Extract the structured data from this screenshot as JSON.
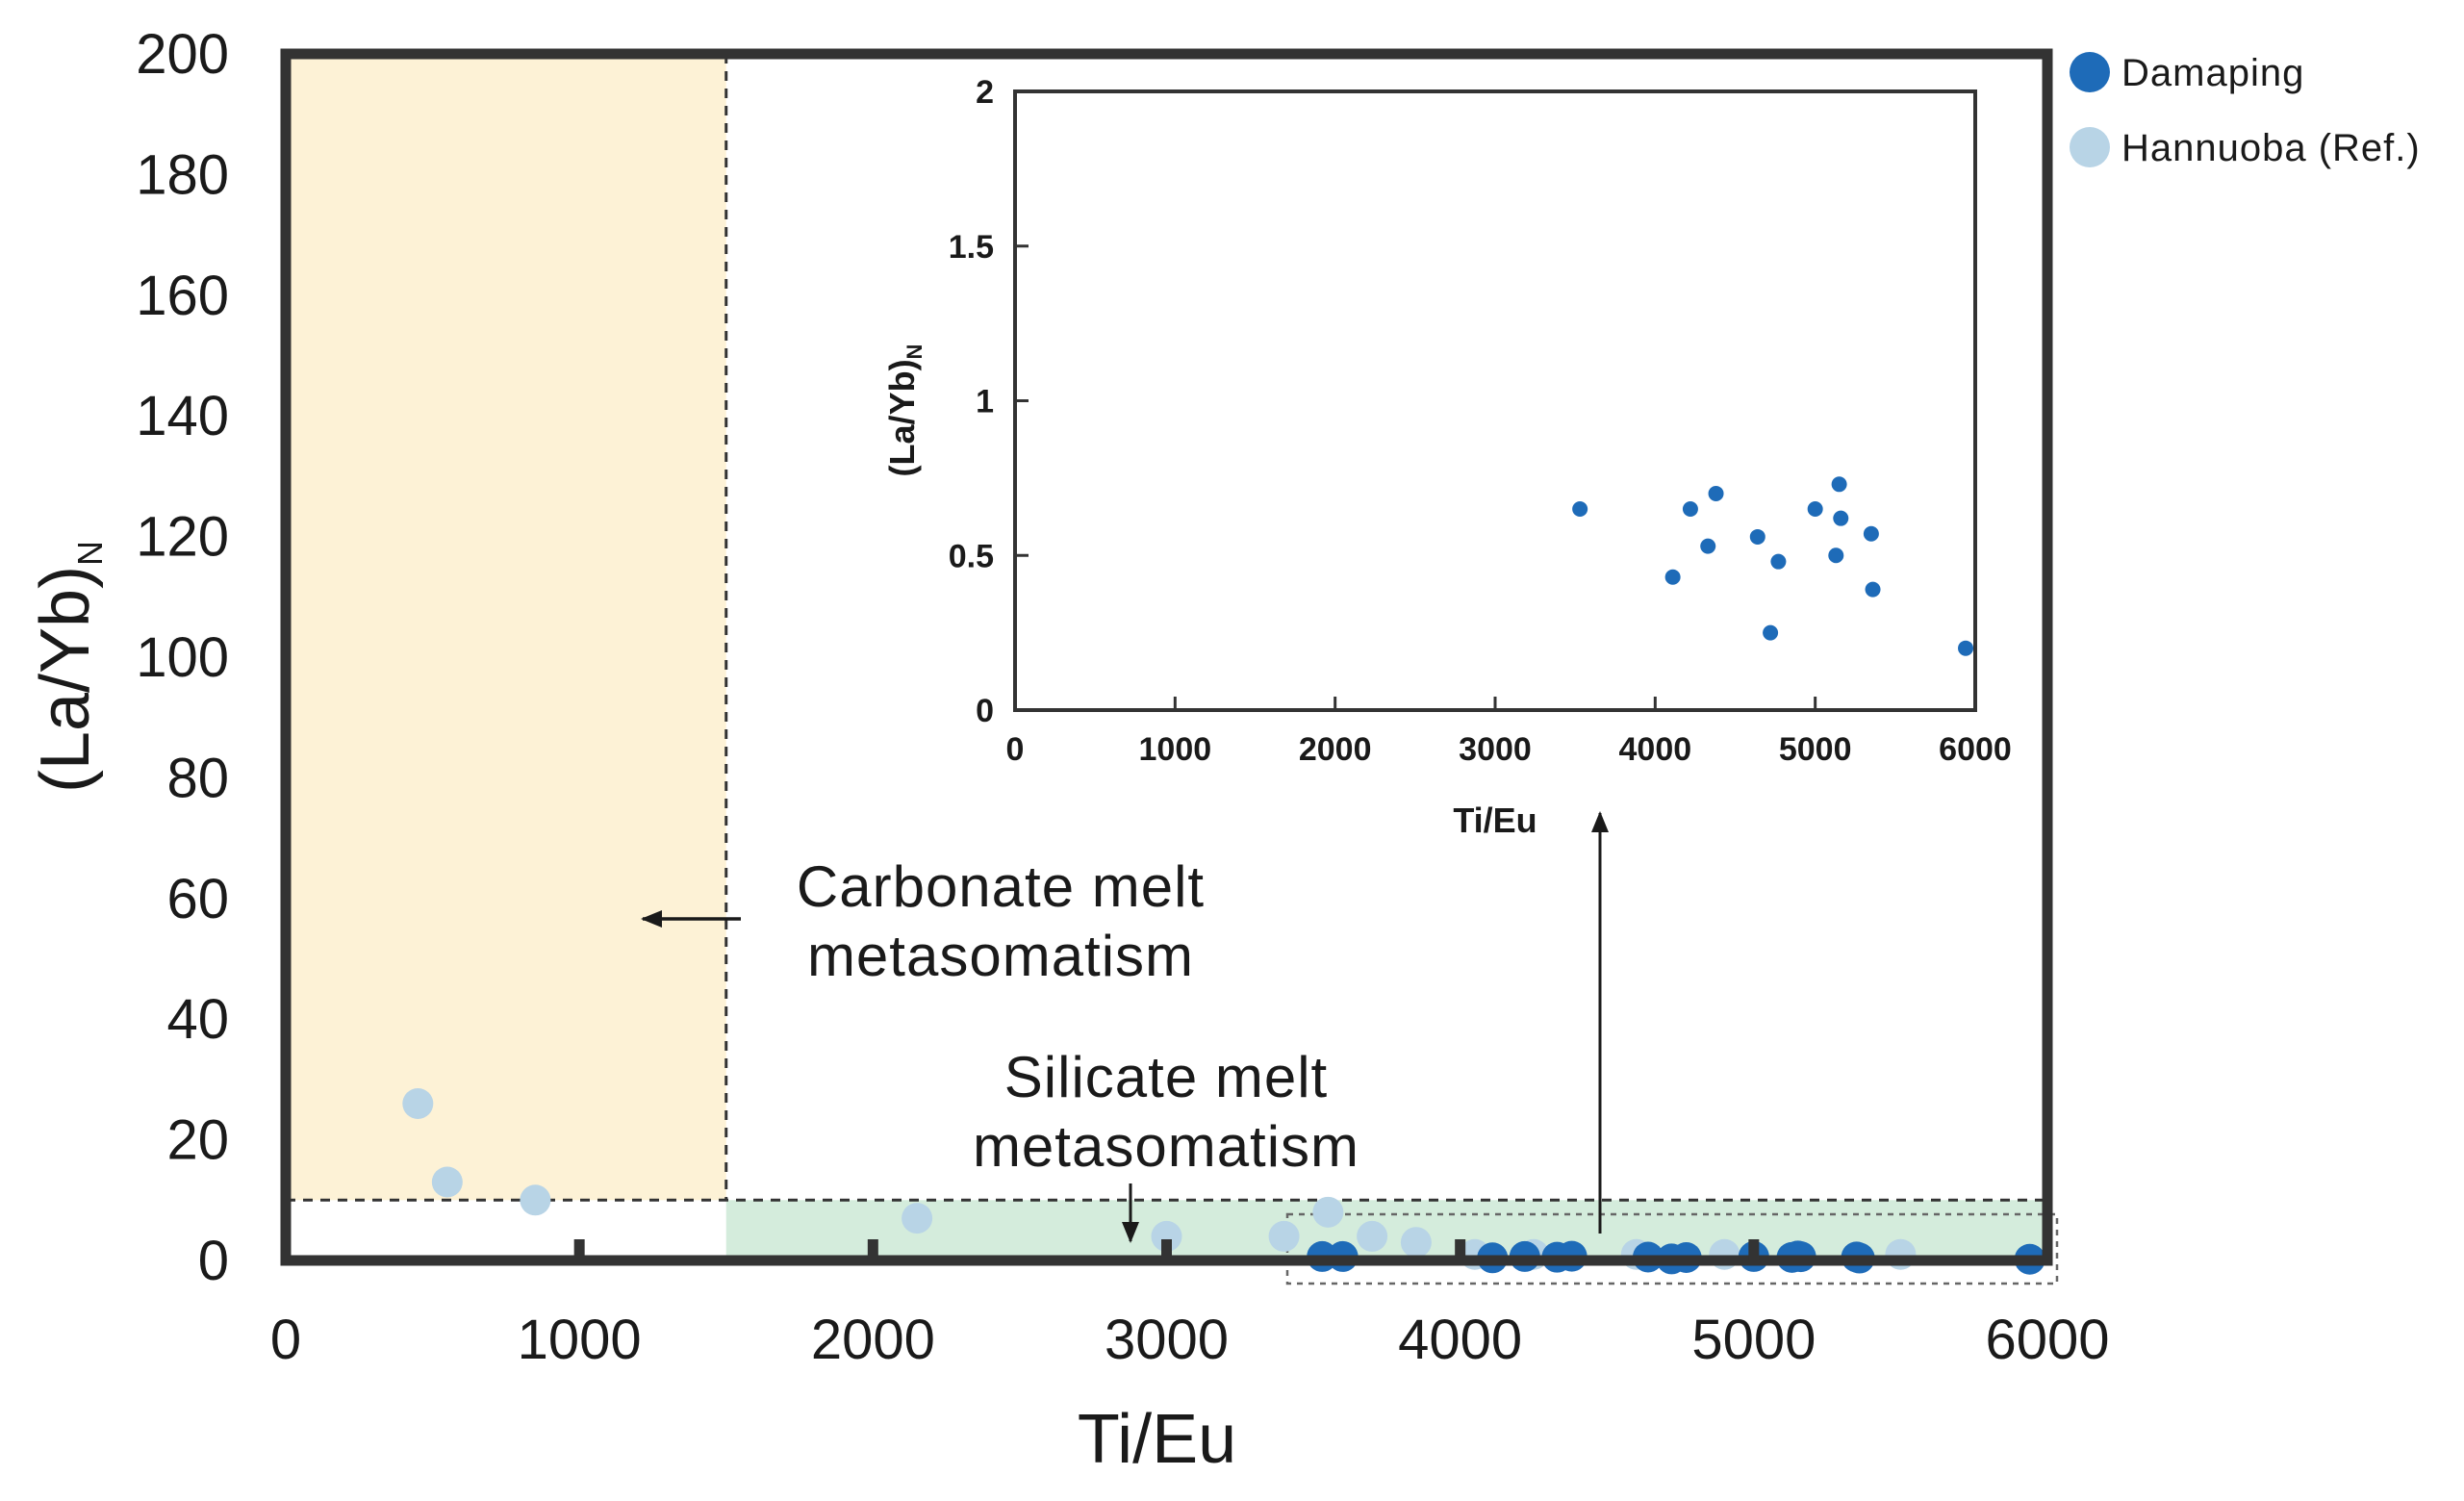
{
  "chart_data": [
    {
      "type": "scatter",
      "title": "",
      "xlabel": "Ti/Eu",
      "ylabel_main": "(La/Yb)",
      "ylabel_sub": "N",
      "xlim": [
        0,
        6000
      ],
      "ylim": [
        0,
        200
      ],
      "x_ticks": [
        0,
        1000,
        2000,
        3000,
        4000,
        5000,
        6000
      ],
      "y_ticks": [
        0,
        20,
        40,
        60,
        80,
        100,
        120,
        140,
        160,
        180,
        200
      ],
      "grid": false,
      "legend_position": "top-right",
      "regions": [
        {
          "x": [
            0,
            1500
          ],
          "y": [
            10,
            200
          ],
          "color": "#fdf2d6"
        },
        {
          "x": [
            1500,
            6000
          ],
          "y": [
            0,
            10
          ],
          "color": "#d4ecdc"
        }
      ],
      "annotations": [
        {
          "line1": "Carbonate melt",
          "line2": "metasomatism"
        },
        {
          "line1": "Silicate melt",
          "line2": "metasomatism"
        }
      ],
      "series": [
        {
          "name": "Damaping",
          "color": "#1e6bb8",
          "points": [
            [
              3530,
              0.65
            ],
            [
              3600,
              0.65
            ],
            [
              4110,
              0.43
            ],
            [
              4220,
              0.65
            ],
            [
              4330,
              0.53
            ],
            [
              4380,
              0.7
            ],
            [
              4640,
              0.56
            ],
            [
              4720,
              0.25
            ],
            [
              4770,
              0.48
            ],
            [
              5000,
              0.65
            ],
            [
              5130,
              0.5
            ],
            [
              5150,
              0.73
            ],
            [
              5160,
              0.62
            ],
            [
              5350,
              0.57
            ],
            [
              5360,
              0.39
            ],
            [
              5940,
              0.2
            ]
          ]
        },
        {
          "name": "Hannuoba (Ref.)",
          "color": "#b8d4e6",
          "points": [
            [
              450,
              26
            ],
            [
              550,
              13
            ],
            [
              850,
              10
            ],
            [
              2150,
              7
            ],
            [
              3000,
              4
            ],
            [
              3400,
              4
            ],
            [
              3550,
              8
            ],
            [
              3700,
              4
            ],
            [
              3850,
              3
            ],
            [
              4050,
              1
            ],
            [
              4250,
              1
            ],
            [
              4600,
              1
            ],
            [
              4900,
              1
            ],
            [
              5500,
              1
            ]
          ]
        }
      ]
    },
    {
      "type": "scatter",
      "title": "",
      "xlabel": "Ti/Eu",
      "ylabel_main": "(La/Yb)",
      "ylabel_sub": "N",
      "xlim": [
        0,
        6000
      ],
      "ylim": [
        0,
        2
      ],
      "x_ticks": [
        0,
        1000,
        2000,
        3000,
        4000,
        5000,
        6000
      ],
      "y_ticks": [
        0,
        0.5,
        1,
        1.5,
        2
      ],
      "y_tick_labels": [
        "0",
        "0.5",
        "1",
        "1.5",
        "2"
      ],
      "grid": false,
      "series": [
        {
          "name": "Damaping",
          "color": "#1e6bb8",
          "points": [
            [
              3530,
              0.65
            ],
            [
              4110,
              0.43
            ],
            [
              4220,
              0.65
            ],
            [
              4330,
              0.53
            ],
            [
              4380,
              0.7
            ],
            [
              4640,
              0.56
            ],
            [
              4720,
              0.25
            ],
            [
              4770,
              0.48
            ],
            [
              5000,
              0.65
            ],
            [
              5130,
              0.5
            ],
            [
              5150,
              0.73
            ],
            [
              5160,
              0.62
            ],
            [
              5350,
              0.57
            ],
            [
              5360,
              0.39
            ],
            [
              5940,
              0.2
            ]
          ]
        }
      ]
    }
  ]
}
